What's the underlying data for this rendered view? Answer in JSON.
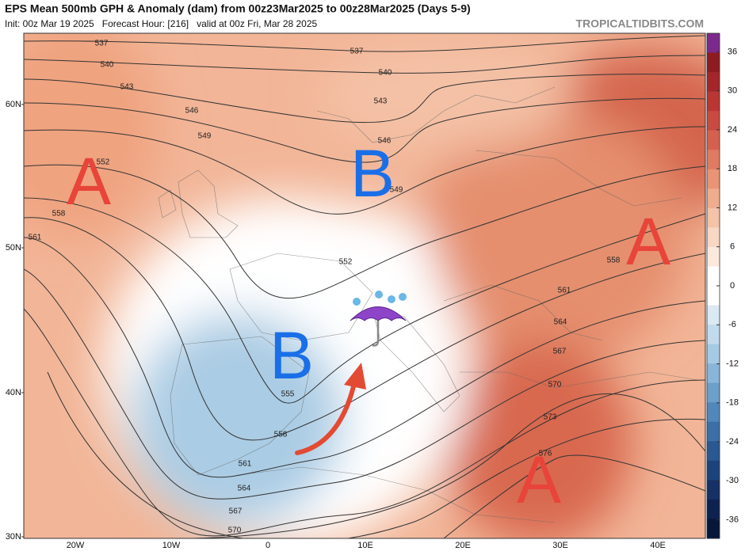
{
  "header": {
    "title": "EPS Mean 500mb GPH & Anomaly (dam) from 00z23Mar2025 to 00z28Mar2025 (Days 5-9)",
    "subtitle": "Init: 00z Mar 19 2025   Forecast Hour: [216]   valid at 00z Fri, Mar 28 2025",
    "watermark": "TROPICALTIDBITS.COM"
  },
  "colorbar": {
    "ticks": [
      36,
      30,
      24,
      18,
      12,
      6,
      0,
      -6,
      -12,
      -18,
      -24,
      -30,
      -36
    ],
    "colors": [
      "#7b2a8c",
      "#8e1b1f",
      "#a4262a",
      "#b93633",
      "#c94a40",
      "#d6604e",
      "#e07a60",
      "#e99474",
      "#efad8e",
      "#f4c3a8",
      "#f8d7c3",
      "#fce9dd",
      "#ffffff",
      "#ffffff",
      "#dbe9f3",
      "#c2dbec",
      "#a6cae3",
      "#89b6d8",
      "#6c9fca",
      "#5287ba",
      "#3b6fa6",
      "#2a5891",
      "#1d437b",
      "#153165",
      "#0e224f",
      "#08163a"
    ]
  },
  "axes": {
    "latitudes": [
      "60N",
      "50N",
      "40N",
      "30N"
    ],
    "longitudes": [
      "20W",
      "10W",
      "0",
      "10E",
      "20E",
      "30E",
      "40E"
    ]
  },
  "contour_labels": [
    537,
    540,
    543,
    546,
    549,
    552,
    558,
    561,
    537,
    540,
    543,
    546,
    549,
    552,
    555,
    558,
    561,
    564,
    567,
    570,
    558,
    561,
    564,
    567,
    570,
    573,
    576
  ],
  "annotations": [
    "A",
    "B",
    "A",
    "B",
    "A"
  ]
}
